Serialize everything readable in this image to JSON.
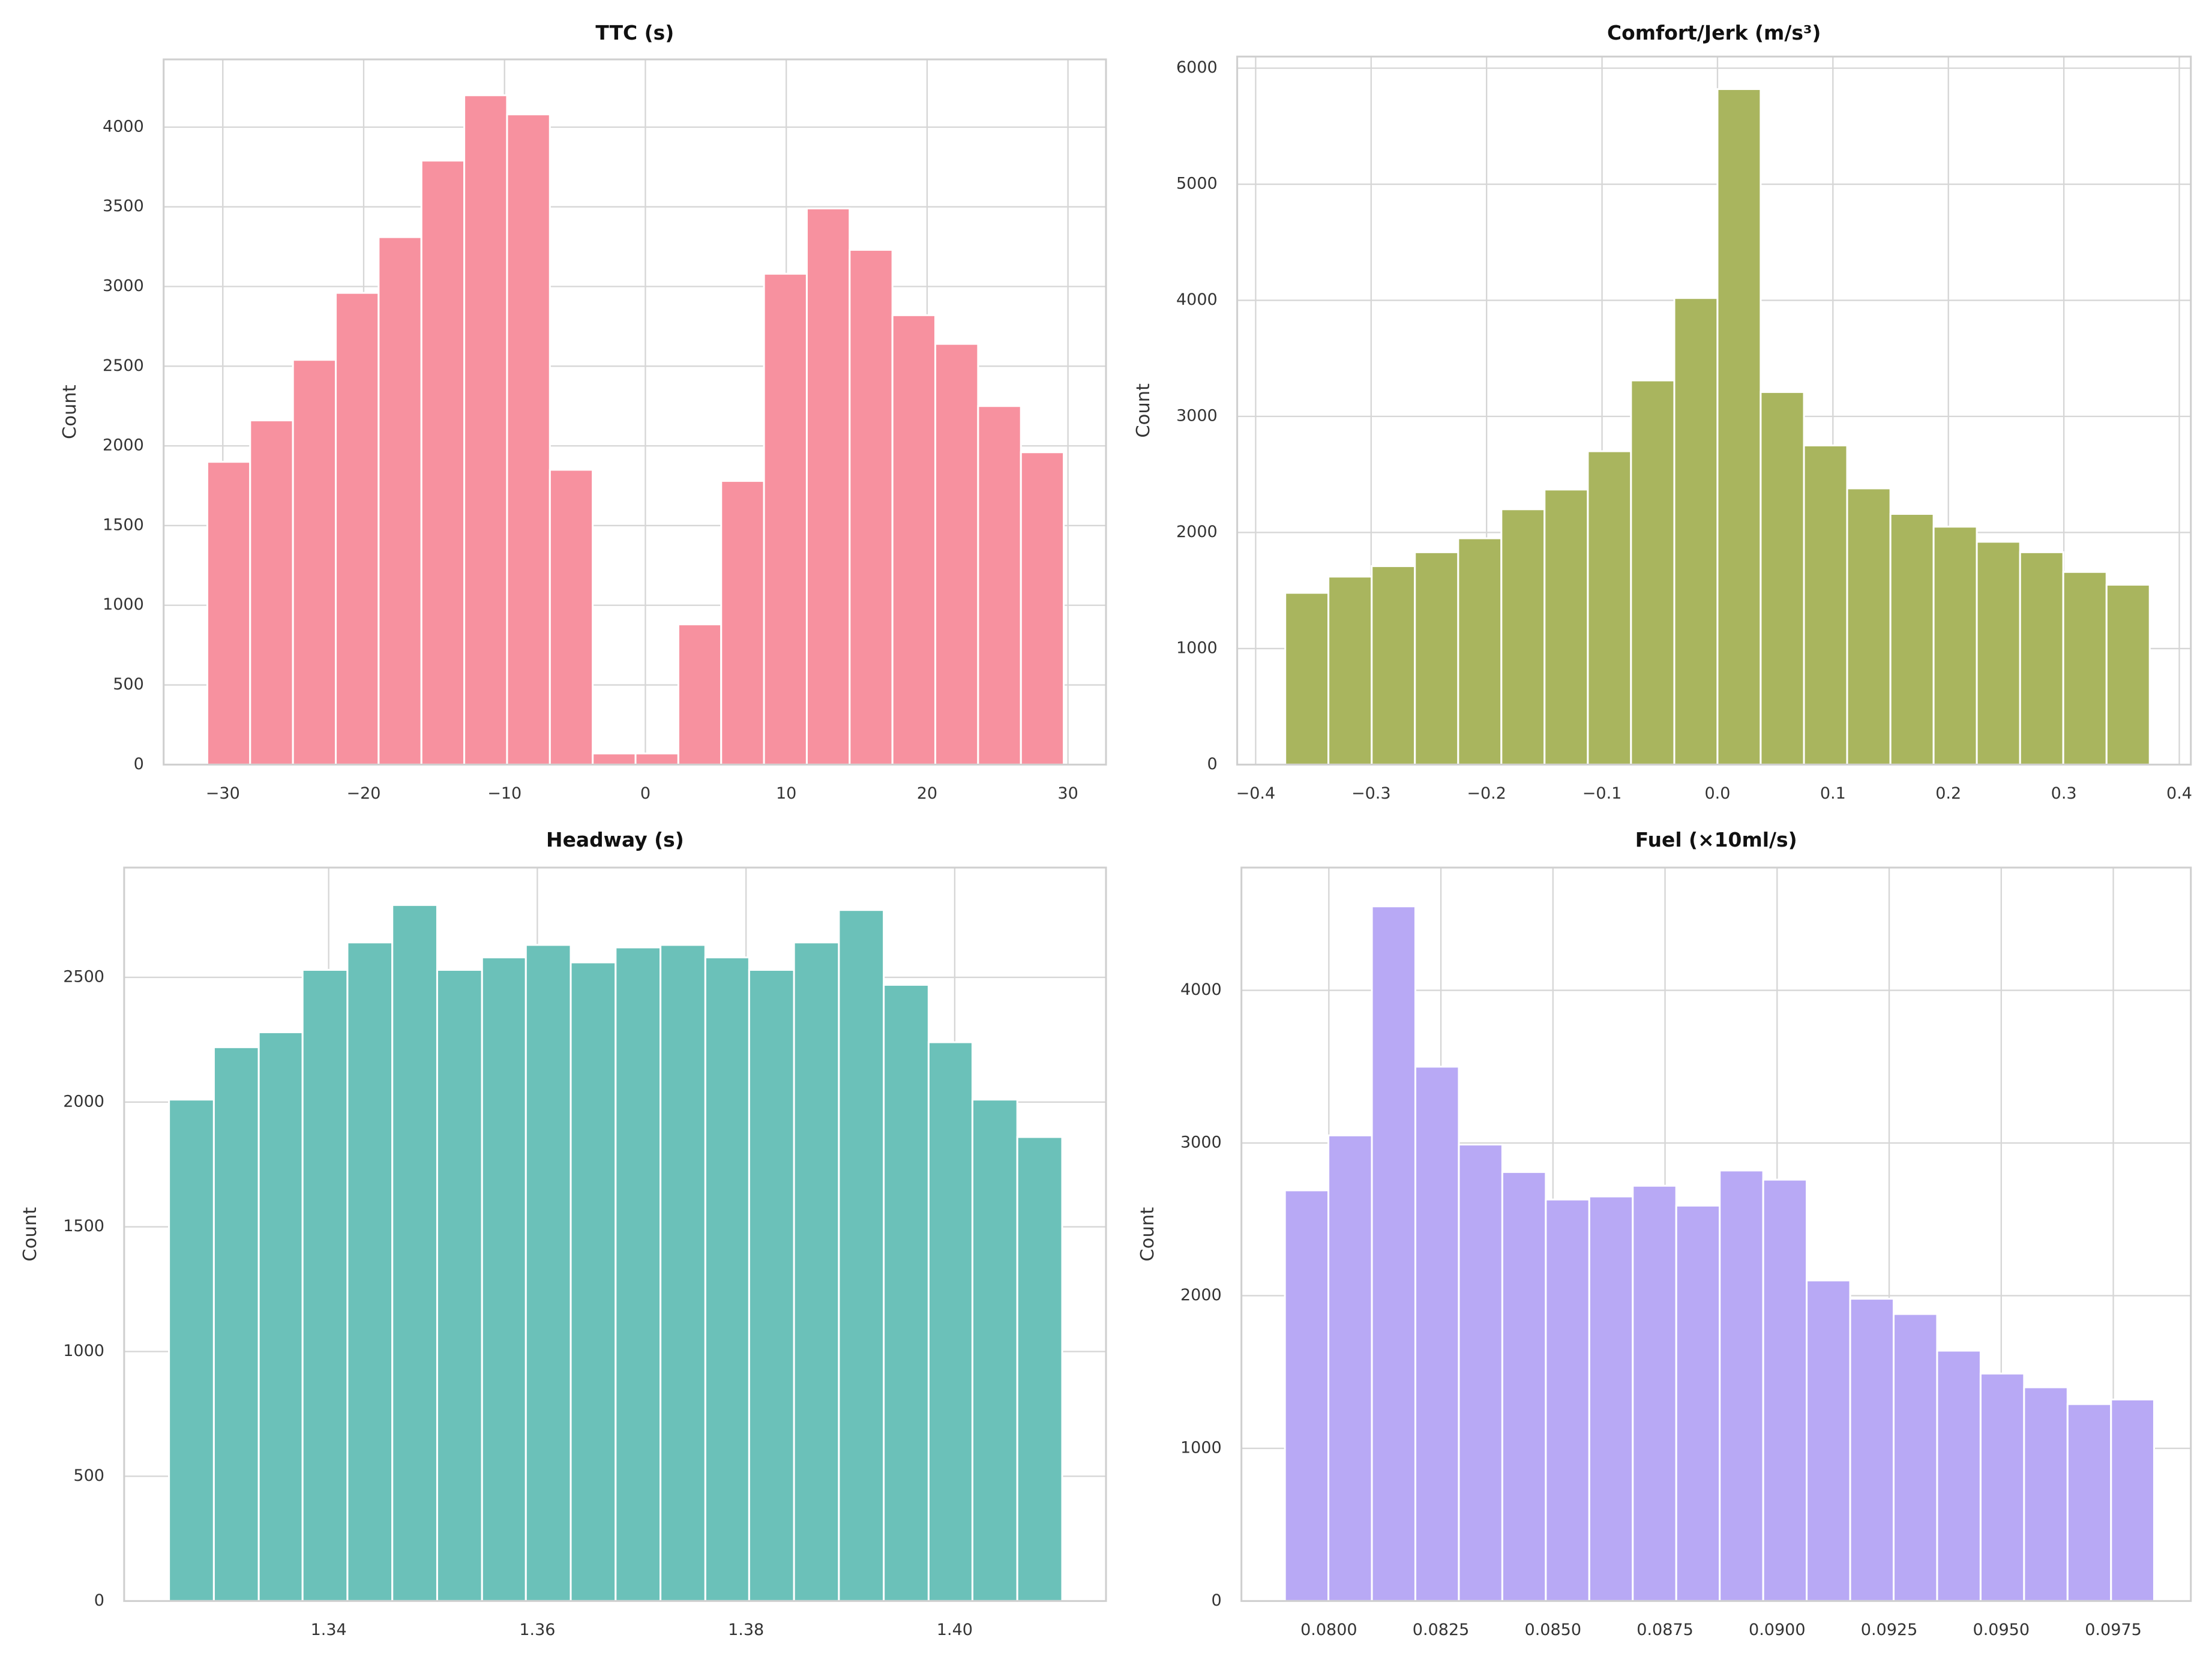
{
  "chart_data": [
    {
      "type": "histogram",
      "title": "TTC (s)",
      "ylabel": "Count",
      "color": "#f7919f",
      "grid": true,
      "bins": [
        -31.1,
        -28.06,
        -25.02,
        -21.98,
        -18.94,
        -15.9,
        -12.86,
        -9.82,
        -6.78,
        -3.74,
        -0.7,
        2.34,
        5.38,
        8.42,
        11.46,
        14.5,
        17.54,
        20.58,
        23.62,
        26.66,
        29.7
      ],
      "values": [
        1900,
        2160,
        2540,
        2960,
        3310,
        3790,
        4200,
        4080,
        1850,
        70,
        70,
        880,
        1780,
        3080,
        3490,
        3230,
        2820,
        2640,
        2250,
        1960
      ],
      "xlim": [
        -34.2,
        32.7
      ],
      "ylim": [
        0,
        4425
      ],
      "xticks": [
        {
          "value": -30,
          "label": "−30"
        },
        {
          "value": -20,
          "label": "−20"
        },
        {
          "value": -10,
          "label": "−10"
        },
        0,
        10,
        20,
        30
      ],
      "yticks": [
        0,
        500,
        1000,
        1500,
        2000,
        2500,
        3000,
        3500,
        4000
      ]
    },
    {
      "type": "histogram",
      "title": "Comfort/Jerk (m/s³)",
      "ylabel": "Count",
      "color": "#a9b55e",
      "grid": true,
      "bins": [
        -0.3744,
        -0.337,
        -0.2995,
        -0.2621,
        -0.2246,
        -0.1872,
        -0.1498,
        -0.1123,
        -0.0749,
        -0.0374,
        0,
        0.0374,
        0.0749,
        0.1123,
        0.1498,
        0.1872,
        0.2246,
        0.2621,
        0.2995,
        0.337,
        0.3744
      ],
      "values": [
        1480,
        1620,
        1710,
        1830,
        1950,
        2200,
        2370,
        2700,
        3310,
        4020,
        5820,
        3210,
        2750,
        2380,
        2160,
        2050,
        1920,
        1830,
        1660,
        1550
      ],
      "xlim": [
        -0.416,
        0.41
      ],
      "ylim": [
        0,
        6100
      ],
      "xticks": [
        {
          "value": -0.4,
          "label": "−0.4"
        },
        {
          "value": -0.3,
          "label": "−0.3"
        },
        {
          "value": -0.2,
          "label": "−0.2"
        },
        {
          "value": -0.1,
          "label": "−0.1"
        },
        {
          "value": 0,
          "label": "0.0"
        },
        0.1,
        0.2,
        0.3,
        0.4
      ],
      "yticks": [
        0,
        1000,
        2000,
        3000,
        4000,
        5000,
        6000
      ]
    },
    {
      "type": "histogram",
      "title": "Headway (s)",
      "ylabel": "Count",
      "color": "#6bc1b9",
      "grid": true,
      "bins": [
        1.3247,
        1.329,
        1.3333,
        1.3375,
        1.3418,
        1.3461,
        1.3504,
        1.3547,
        1.3589,
        1.3632,
        1.3675,
        1.3718,
        1.3761,
        1.3803,
        1.3846,
        1.3889,
        1.3932,
        1.3975,
        1.4017,
        1.406,
        1.4103
      ],
      "values": [
        2010,
        2220,
        2280,
        2530,
        2640,
        2790,
        2530,
        2580,
        2630,
        2560,
        2620,
        2630,
        2580,
        2530,
        2640,
        2770,
        2470,
        2240,
        2010,
        1860
      ],
      "xlim": [
        1.3204,
        1.4145
      ],
      "ylim": [
        0,
        2940
      ],
      "xticks": [
        1.34,
        1.36,
        1.38,
        {
          "value": 1.4,
          "label": "1.40"
        }
      ],
      "yticks": [
        0,
        500,
        1000,
        1500,
        2000,
        2500
      ]
    },
    {
      "type": "histogram",
      "title": "Fuel (×10ml/s)",
      "ylabel": "Count",
      "color": "#b8a9f5",
      "grid": true,
      "bins": [
        0.07902,
        0.07999,
        0.08096,
        0.08193,
        0.0829,
        0.08387,
        0.08484,
        0.08581,
        0.08678,
        0.08775,
        0.08872,
        0.08969,
        0.09066,
        0.09163,
        0.0926,
        0.09357,
        0.09454,
        0.09551,
        0.09648,
        0.09745,
        0.09841
      ],
      "values": [
        2690,
        3050,
        4550,
        3500,
        2990,
        2810,
        2630,
        2650,
        2720,
        2590,
        2820,
        2760,
        2100,
        1980,
        1880,
        1640,
        1490,
        1400,
        1290,
        1320
      ],
      "xlim": [
        0.07805,
        0.09923
      ],
      "ylim": [
        0,
        4804
      ],
      "xticks": [
        {
          "value": 0.08,
          "label": "0.0800"
        },
        {
          "value": 0.0825,
          "label": "0.0825"
        },
        {
          "value": 0.085,
          "label": "0.0850"
        },
        {
          "value": 0.0875,
          "label": "0.0875"
        },
        {
          "value": 0.09,
          "label": "0.0900"
        },
        {
          "value": 0.0925,
          "label": "0.0925"
        },
        {
          "value": 0.095,
          "label": "0.0950"
        },
        {
          "value": 0.0975,
          "label": "0.0975"
        }
      ],
      "yticks": [
        0,
        1000,
        2000,
        3000,
        4000
      ]
    }
  ]
}
